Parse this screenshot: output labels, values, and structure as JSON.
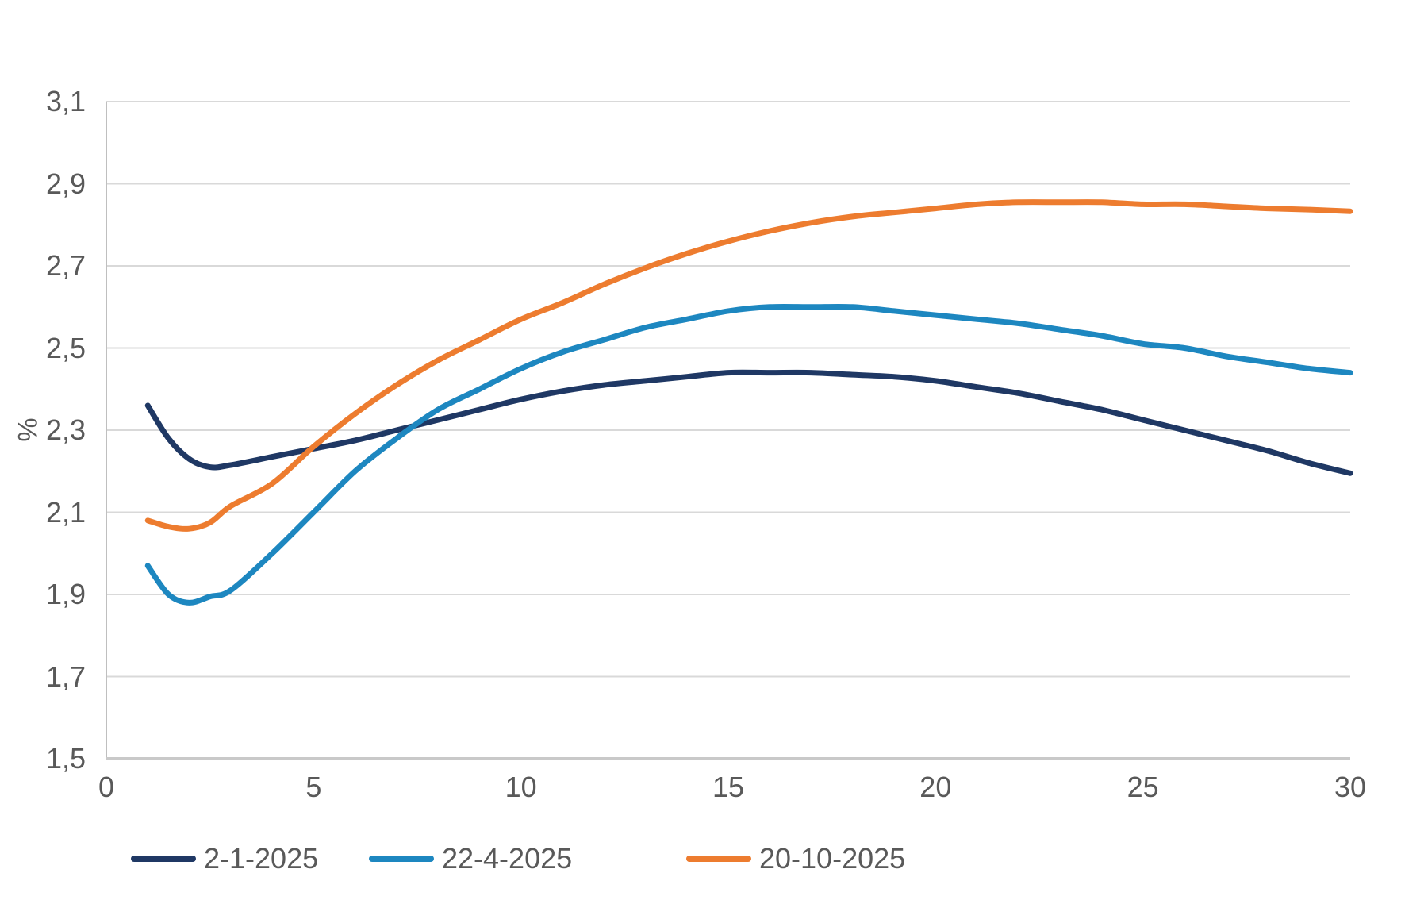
{
  "chart_data": {
    "type": "line",
    "title": "",
    "xlabel": "",
    "ylabel": "%",
    "grid": "horizontal",
    "legend_position": "bottom-left",
    "xlim": [
      0,
      30
    ],
    "ylim": [
      1.5,
      3.1
    ],
    "x_ticks": [
      0,
      5,
      10,
      15,
      20,
      25,
      30
    ],
    "x_tick_labels": [
      "0",
      "5",
      "10",
      "15",
      "20",
      "25",
      "30"
    ],
    "y_ticks": [
      1.5,
      1.7,
      1.9,
      2.1,
      2.3,
      2.5,
      2.7,
      2.9,
      3.1
    ],
    "y_tick_labels": [
      "1,5",
      "1,7",
      "1,9",
      "2,1",
      "2,3",
      "2,5",
      "2,7",
      "2,9",
      "3,1"
    ],
    "x": [
      1,
      1.5,
      2,
      2.5,
      3,
      4,
      5,
      6,
      7,
      8,
      9,
      10,
      11,
      12,
      13,
      14,
      15,
      16,
      17,
      18,
      19,
      20,
      21,
      22,
      23,
      24,
      25,
      26,
      27,
      28,
      29,
      30
    ],
    "series": [
      {
        "name": "2-1-2025",
        "color": "#1f3864",
        "values": [
          2.36,
          2.28,
          2.23,
          2.21,
          2.215,
          2.235,
          2.255,
          2.275,
          2.3,
          2.325,
          2.35,
          2.375,
          2.395,
          2.41,
          2.42,
          2.43,
          2.44,
          2.44,
          2.44,
          2.435,
          2.43,
          2.42,
          2.405,
          2.39,
          2.37,
          2.35,
          2.325,
          2.3,
          2.275,
          2.25,
          2.22,
          2.195
        ]
      },
      {
        "name": "22-4-2025",
        "color": "#1d87c0",
        "values": [
          1.97,
          1.9,
          1.88,
          1.895,
          1.91,
          2.0,
          2.1,
          2.2,
          2.28,
          2.35,
          2.4,
          2.45,
          2.49,
          2.52,
          2.55,
          2.57,
          2.59,
          2.6,
          2.6,
          2.6,
          2.59,
          2.58,
          2.57,
          2.56,
          2.545,
          2.53,
          2.51,
          2.5,
          2.48,
          2.465,
          2.45,
          2.44
        ]
      },
      {
        "name": "20-10-2025",
        "color": "#ed7c2f",
        "values": [
          2.08,
          2.065,
          2.06,
          2.075,
          2.115,
          2.17,
          2.26,
          2.34,
          2.41,
          2.47,
          2.52,
          2.57,
          2.61,
          2.655,
          2.695,
          2.73,
          2.76,
          2.785,
          2.805,
          2.82,
          2.83,
          2.84,
          2.85,
          2.855,
          2.855,
          2.855,
          2.85,
          2.85,
          2.845,
          2.84,
          2.837,
          2.833
        ]
      }
    ]
  },
  "colors": {
    "background": "#ffffff",
    "gridline": "#d9d9d9",
    "axis_line": "#bfbfbf",
    "bottom_axis_line": "#c9c9c9",
    "tick_text": "#595959"
  },
  "layout_values": {
    "legend_item_lefts": [
      165,
      465,
      865
    ]
  }
}
